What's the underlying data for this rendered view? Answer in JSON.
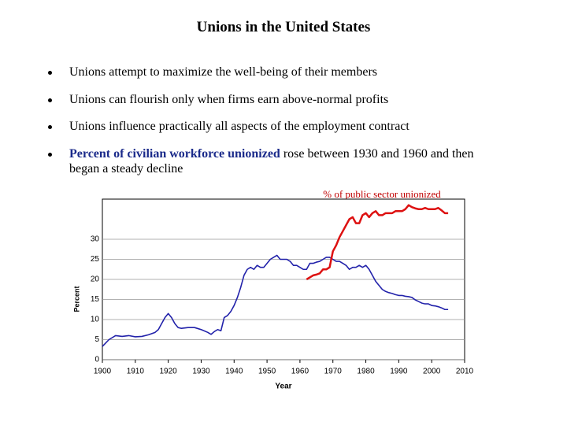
{
  "title": "Unions in the United States",
  "bullets": [
    "Unions attempt to maximize the well-being of their members",
    "Unions can flourish only when firms earn above-normal profits",
    "Unions influence practically all aspects of the employment contract"
  ],
  "last_bullet": {
    "emphasis": "Percent of civilian workforce unionized",
    "text": "rose between 1930 and 1960 and then began a steady decline"
  },
  "chart_data": {
    "type": "line",
    "annotation": "% of public sector unionized",
    "xlabel": "Year",
    "ylabel": "Percent",
    "xlim": [
      1900,
      2010
    ],
    "xticks": [
      1900,
      1910,
      1920,
      1930,
      1940,
      1950,
      1960,
      1970,
      1980,
      1990,
      2000,
      2010
    ],
    "ylim": [
      0,
      40
    ],
    "yticks": [
      0,
      5,
      10,
      15,
      20,
      25,
      30
    ],
    "grid": true,
    "series": [
      {
        "color": "#2222aa",
        "x": [
          1900,
          1902,
          1904,
          1906,
          1908,
          1910,
          1912,
          1914,
          1916,
          1917,
          1918,
          1919,
          1920,
          1921,
          1922,
          1923,
          1924,
          1926,
          1928,
          1930,
          1932,
          1933,
          1934,
          1935,
          1936,
          1937,
          1938,
          1939,
          1940,
          1941,
          1942,
          1943,
          1944,
          1945,
          1946,
          1947,
          1948,
          1949,
          1950,
          1951,
          1952,
          1953,
          1954,
          1955,
          1956,
          1957,
          1958,
          1959,
          1960,
          1961,
          1962,
          1963,
          1964,
          1965,
          1966,
          1967,
          1968,
          1969,
          1970,
          1971,
          1972,
          1973,
          1974,
          1975,
          1976,
          1977,
          1978,
          1979,
          1980,
          1981,
          1982,
          1983,
          1984,
          1985,
          1986,
          1987,
          1988,
          1989,
          1990,
          1991,
          1992,
          1993,
          1994,
          1995,
          1996,
          1997,
          1998,
          1999,
          2000,
          2001,
          2002,
          2003,
          2004,
          2005
        ],
        "values": [
          3.3,
          5,
          6,
          5.8,
          6,
          5.7,
          5.8,
          6.2,
          6.8,
          7.5,
          9,
          10.5,
          11.5,
          10.5,
          9,
          8,
          7.8,
          8,
          8,
          7.5,
          6.8,
          6.3,
          7,
          7.5,
          7.2,
          10.5,
          11,
          12,
          13.5,
          15.5,
          18,
          21,
          22.5,
          23,
          22.5,
          23.5,
          23,
          23,
          24,
          25,
          25.5,
          26,
          25,
          25,
          25,
          24.5,
          23.5,
          23.5,
          23,
          22.5,
          22.5,
          24,
          24,
          24.3,
          24.5,
          25,
          25.5,
          25.5,
          25,
          24.5,
          24.5,
          24,
          23.5,
          22.5,
          23,
          23,
          23.5,
          23,
          23.5,
          22.5,
          21,
          19.5,
          18.5,
          17.5,
          17,
          16.7,
          16.5,
          16.2,
          16,
          16,
          15.8,
          15.7,
          15.5,
          14.9,
          14.5,
          14.1,
          13.9,
          13.9,
          13.5,
          13.4,
          13.2,
          12.9,
          12.5,
          12.5
        ]
      },
      {
        "name": "% of public sector unionized",
        "color": "#dd1111",
        "x": [
          1962,
          1963,
          1964,
          1965,
          1966,
          1967,
          1968,
          1969,
          1970,
          1971,
          1972,
          1973,
          1974,
          1975,
          1976,
          1977,
          1978,
          1979,
          1980,
          1981,
          1982,
          1983,
          1984,
          1985,
          1986,
          1987,
          1988,
          1989,
          1990,
          1991,
          1992,
          1993,
          1994,
          1995,
          1996,
          1997,
          1998,
          1999,
          2000,
          2001,
          2002,
          2003,
          2004,
          2005
        ],
        "values": [
          20,
          20.5,
          21,
          21.2,
          21.5,
          22.5,
          22.5,
          23,
          27,
          28.5,
          30.5,
          32,
          33.5,
          35,
          35.5,
          34,
          34,
          36,
          36.5,
          35.5,
          36.5,
          37,
          36,
          36,
          36.5,
          36.5,
          36.5,
          37,
          37,
          37,
          37.5,
          38.5,
          38,
          37.7,
          37.5,
          37.5,
          37.8,
          37.5,
          37.5,
          37.5,
          37.8,
          37.2,
          36.5,
          36.5
        ]
      }
    ]
  }
}
